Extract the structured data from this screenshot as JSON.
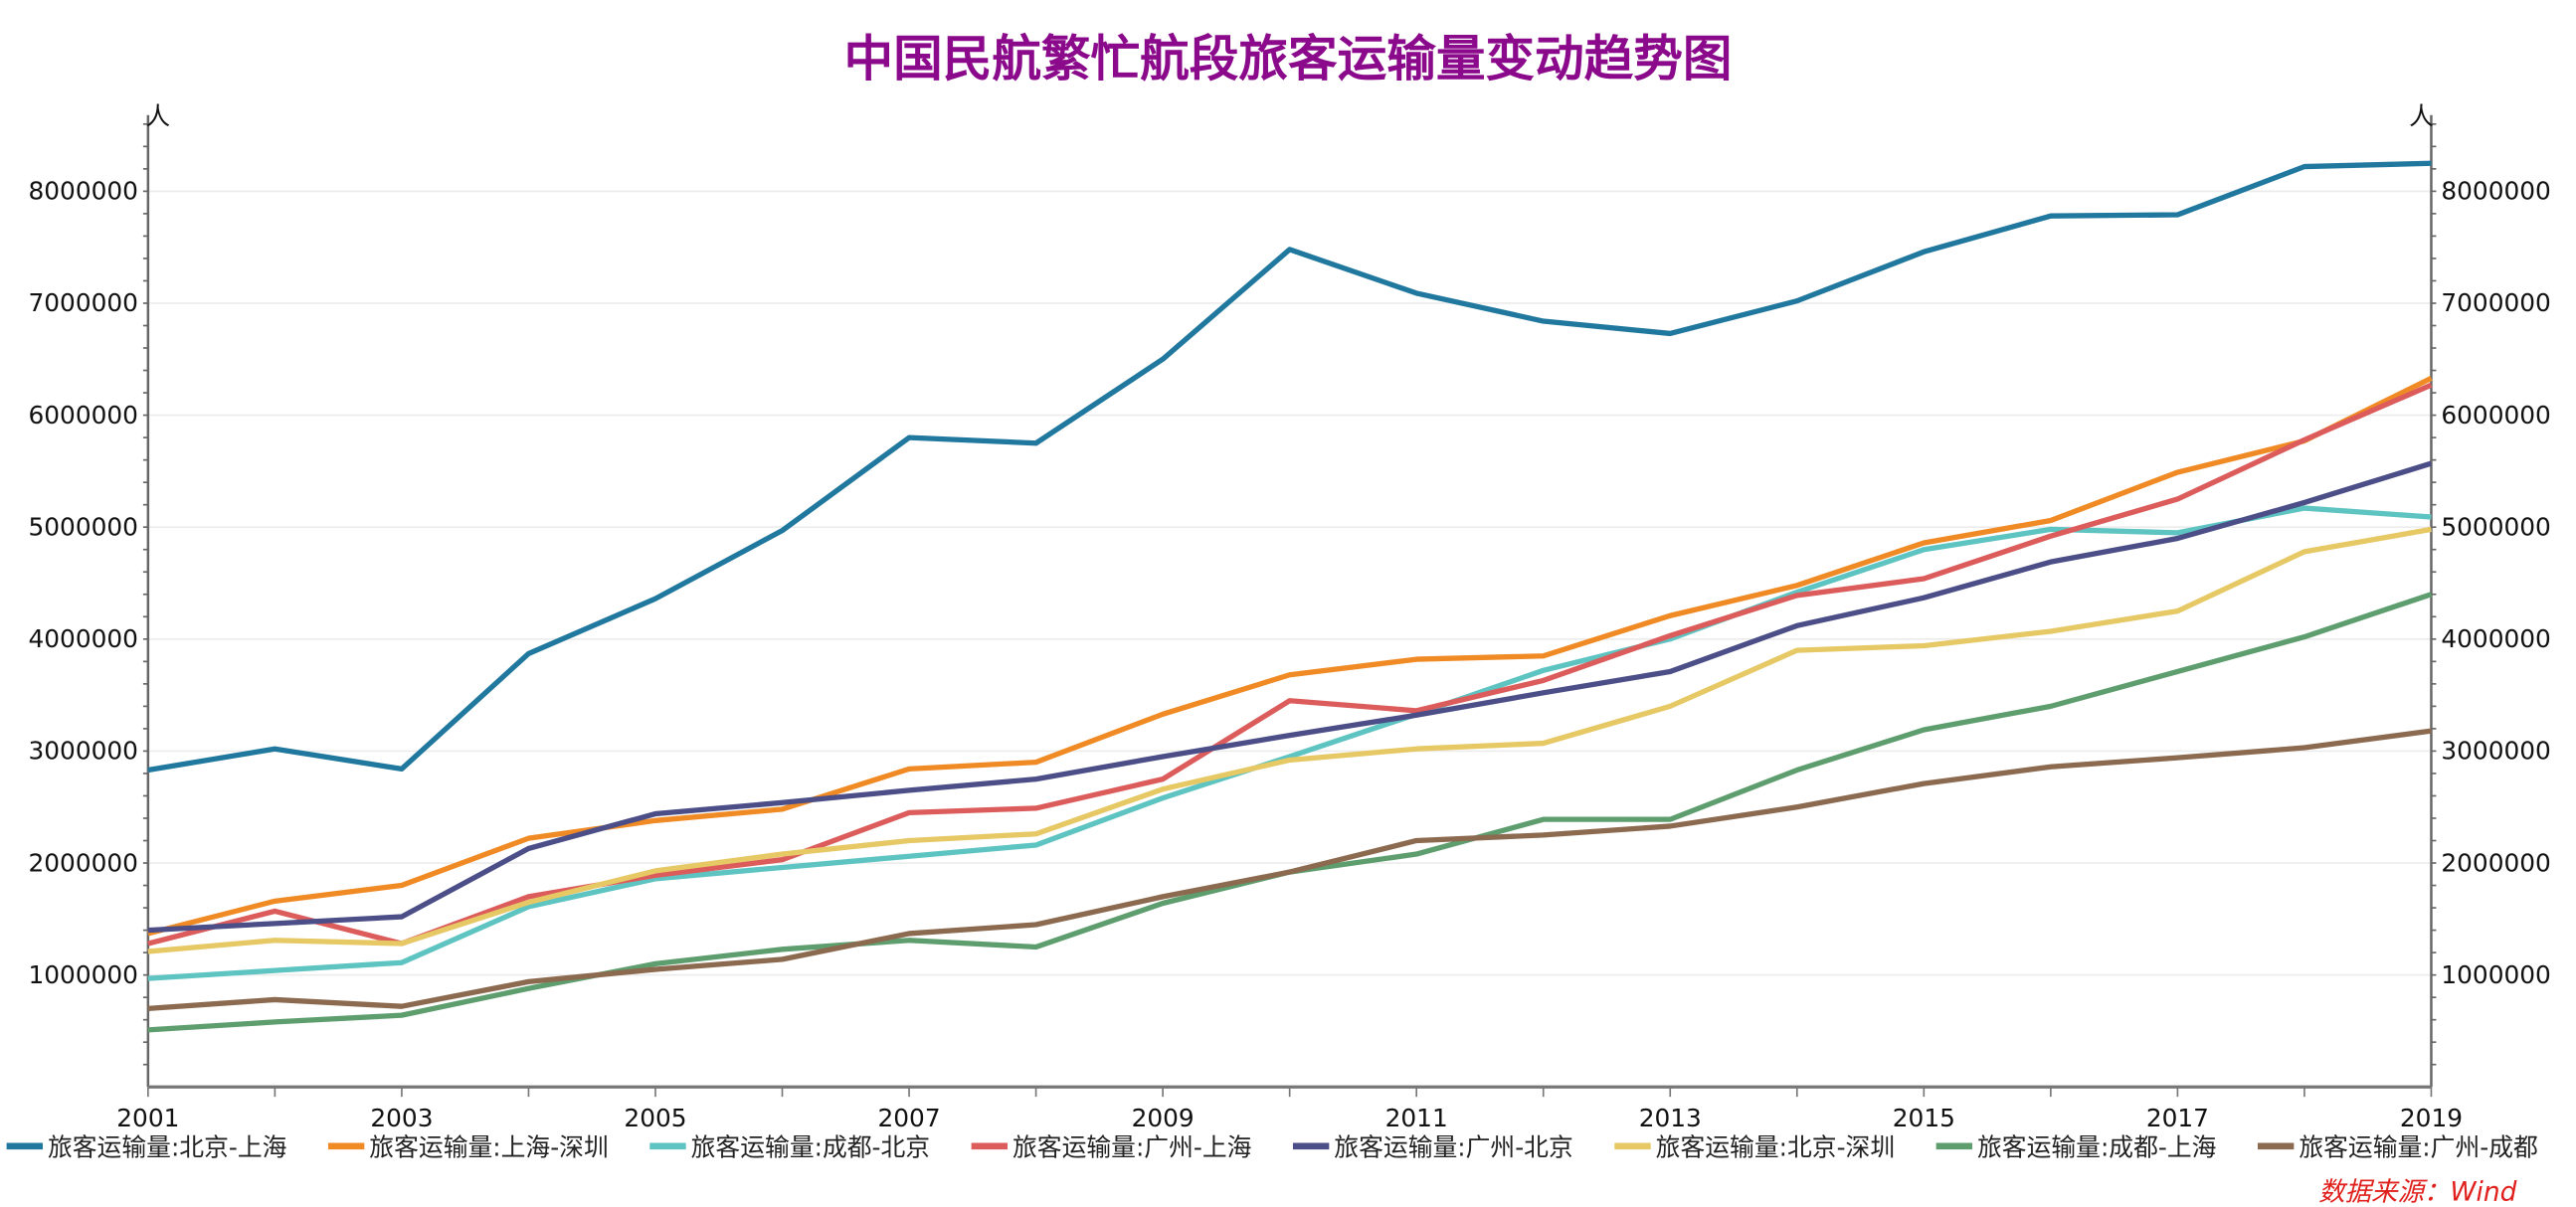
{
  "chart_data": {
    "type": "line",
    "title": "中国民航繁忙航段旅客运输量变动趋势图",
    "ylabel_left": "人",
    "ylabel_right": "人",
    "xlabel": "",
    "x": [
      2001,
      2002,
      2003,
      2004,
      2005,
      2006,
      2007,
      2008,
      2009,
      2010,
      2011,
      2012,
      2013,
      2014,
      2015,
      2016,
      2017,
      2018,
      2019
    ],
    "x_tick_labels": [
      "2001",
      "2003",
      "2005",
      "2007",
      "2009",
      "2011",
      "2013",
      "2015",
      "2017",
      "2019"
    ],
    "y_tick_labels": [
      "1000000",
      "2000000",
      "3000000",
      "4000000",
      "5000000",
      "6000000",
      "7000000",
      "8000000"
    ],
    "y_ticks": [
      1000000,
      2000000,
      3000000,
      4000000,
      5000000,
      6000000,
      7000000,
      8000000
    ],
    "ylim": [
      0,
      8680000
    ],
    "xlim": [
      2001,
      2019
    ],
    "grid": "horizontal",
    "legend_position": "bottom",
    "series": [
      {
        "name": "旅客运输量:北京-上海",
        "color": "#21789e",
        "values": [
          2830000,
          3020000,
          2840000,
          3870000,
          4360000,
          4970000,
          5800000,
          5750000,
          6500000,
          7480000,
          7090000,
          6840000,
          6730000,
          7020000,
          7460000,
          7780000,
          7790000,
          8220000,
          8250000
        ]
      },
      {
        "name": "旅客运输量:上海-深圳",
        "color": "#f08a24",
        "values": [
          1370000,
          1660000,
          1800000,
          2220000,
          2380000,
          2480000,
          2840000,
          2900000,
          3330000,
          3680000,
          3820000,
          3850000,
          4210000,
          4480000,
          4860000,
          5060000,
          5490000,
          5770000,
          6330000
        ]
      },
      {
        "name": "旅客运输量:成都-北京",
        "color": "#5ec4c2",
        "values": [
          970000,
          1040000,
          1110000,
          1610000,
          1860000,
          1960000,
          2060000,
          2160000,
          2580000,
          2950000,
          3330000,
          3720000,
          4000000,
          4420000,
          4800000,
          4980000,
          4950000,
          5170000,
          5090000
        ]
      },
      {
        "name": "旅客运输量:广州-上海",
        "color": "#dc5b5b",
        "values": [
          1280000,
          1570000,
          1280000,
          1700000,
          1890000,
          2030000,
          2450000,
          2490000,
          2750000,
          3450000,
          3360000,
          3630000,
          4030000,
          4390000,
          4540000,
          4920000,
          5250000,
          5780000,
          6270000
        ]
      },
      {
        "name": "旅客运输量:广州-北京",
        "color": "#4c4e88",
        "values": [
          1400000,
          1460000,
          1520000,
          2130000,
          2440000,
          2540000,
          2650000,
          2750000,
          2950000,
          3140000,
          3320000,
          3520000,
          3710000,
          4120000,
          4370000,
          4690000,
          4900000,
          5220000,
          5570000
        ]
      },
      {
        "name": "旅客运输量:北京-深圳",
        "color": "#e6c864",
        "values": [
          1210000,
          1310000,
          1280000,
          1650000,
          1930000,
          2080000,
          2200000,
          2260000,
          2660000,
          2920000,
          3020000,
          3070000,
          3400000,
          3900000,
          3940000,
          4070000,
          4250000,
          4780000,
          4980000
        ]
      },
      {
        "name": "旅客运输量:成都-上海",
        "color": "#5e9e6e",
        "values": [
          510000,
          580000,
          640000,
          880000,
          1100000,
          1230000,
          1310000,
          1250000,
          1640000,
          1920000,
          2080000,
          2390000,
          2390000,
          2830000,
          3190000,
          3400000,
          3710000,
          4020000,
          4400000
        ]
      },
      {
        "name": "旅客运输量:广州-成都",
        "color": "#8c6a50",
        "values": [
          700000,
          780000,
          720000,
          940000,
          1050000,
          1140000,
          1370000,
          1450000,
          1700000,
          1920000,
          2200000,
          2250000,
          2330000,
          2500000,
          2710000,
          2860000,
          2940000,
          3030000,
          3180000
        ]
      }
    ],
    "source": "数据来源：Wind"
  }
}
